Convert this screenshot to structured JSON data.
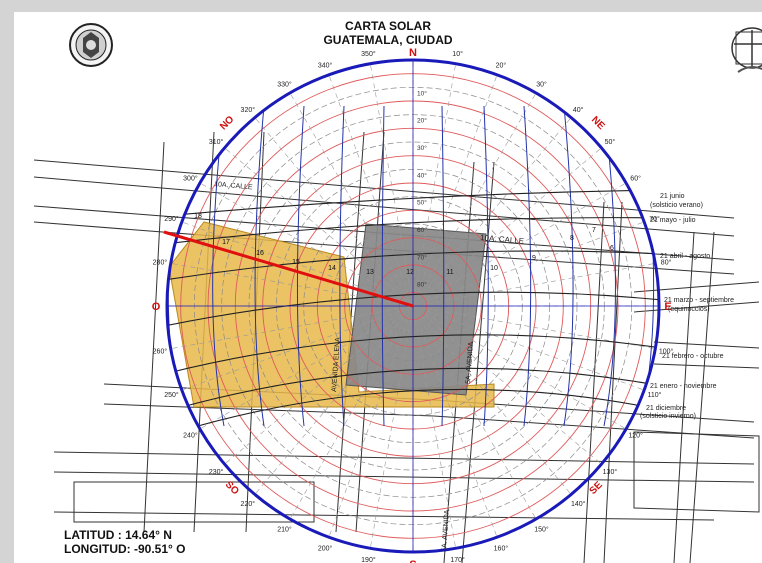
{
  "header": {
    "title": "CARTA SOLAR",
    "subtitle": "GUATEMALA, CIUDAD"
  },
  "footer": {
    "latitude": "LATITUD : 14.64° N",
    "longitude": "LONGITUD: -90.51° O"
  },
  "compass": {
    "north": "N",
    "south": "S",
    "east": "E",
    "west": "O",
    "northeast": "NE",
    "northwest": "NO",
    "southeast": "SE",
    "southwest": "SO"
  },
  "azimuth_labels": [
    {
      "label": "10°",
      "az": 10
    },
    {
      "label": "20°",
      "az": 20
    },
    {
      "label": "30°",
      "az": 30
    },
    {
      "label": "40°",
      "az": 40
    },
    {
      "label": "50°",
      "az": 50
    },
    {
      "label": "60°",
      "az": 60
    },
    {
      "label": "70°",
      "az": 70
    },
    {
      "label": "80°",
      "az": 80
    },
    {
      "label": "100°",
      "az": 100
    },
    {
      "label": "110°",
      "az": 110
    },
    {
      "label": "120°",
      "az": 120
    },
    {
      "label": "130°",
      "az": 130
    },
    {
      "label": "140°",
      "az": 140
    },
    {
      "label": "150°",
      "az": 150
    },
    {
      "label": "160°",
      "az": 160
    },
    {
      "label": "170°",
      "az": 170
    },
    {
      "label": "190°",
      "az": 190
    },
    {
      "label": "200°",
      "az": 200
    },
    {
      "label": "210°",
      "az": 210
    },
    {
      "label": "220°",
      "az": 220
    },
    {
      "label": "230°",
      "az": 230
    },
    {
      "label": "240°",
      "az": 240
    },
    {
      "label": "250°",
      "az": 250
    },
    {
      "label": "260°",
      "az": 260
    },
    {
      "label": "280°",
      "az": 280
    },
    {
      "label": "290°",
      "az": 290
    },
    {
      "label": "300°",
      "az": 300
    },
    {
      "label": "310°",
      "az": 310
    },
    {
      "label": "320°",
      "az": 320
    },
    {
      "label": "330°",
      "az": 330
    },
    {
      "label": "340°",
      "az": 340
    },
    {
      "label": "350°",
      "az": 350
    }
  ],
  "altitude_labels": [
    "10°",
    "20°",
    "30°",
    "40°",
    "50°",
    "60°",
    "70°",
    "80°"
  ],
  "date_curves": [
    {
      "label": "21 junio",
      "sub": "(solsticio verano)"
    },
    {
      "label": "21 mayo - julio",
      "sub": ""
    },
    {
      "label": "21 abril - agosto",
      "sub": ""
    },
    {
      "label": "21 marzo - septiembre",
      "sub": "(equinoccios)"
    },
    {
      "label": "21 febrero - octubre",
      "sub": ""
    },
    {
      "label": "21 enero - noviembre",
      "sub": ""
    },
    {
      "label": "21 diciembre",
      "sub": "(solsticio invierno)"
    }
  ],
  "hour_labels": [
    "6",
    "7",
    "8",
    "9",
    "10",
    "11",
    "12",
    "13",
    "14",
    "15",
    "16",
    "17",
    "18"
  ],
  "street_labels": {
    "calle_north": "10A. CALLE",
    "calle_mid": "10A. CALLE",
    "avenida_west": "AVENIDA ELENA",
    "avenida_mid": "5A. AVENIDA",
    "avenida_south": "5A. AVENIDA"
  },
  "colors": {
    "outer_circle": "#1a1ab8",
    "altitude_rings": "#e05a5a",
    "hour_lines": "#2233aa",
    "shade_fill": "#e8b84a",
    "building_fill": "#888888",
    "sun_vector": "#e01010",
    "compass_text": "#d01010"
  }
}
